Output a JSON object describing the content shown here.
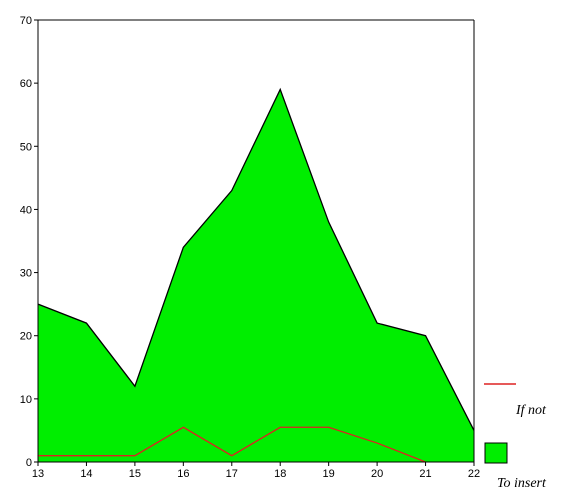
{
  "chart_data": {
    "type": "area",
    "x": [
      13,
      14,
      15,
      16,
      17,
      18,
      19,
      20,
      21,
      22
    ],
    "xlim": [
      13,
      22
    ],
    "ylim": [
      0,
      70
    ],
    "yticks": [
      0,
      10,
      20,
      30,
      40,
      50,
      60,
      70
    ],
    "series": [
      {
        "name": "To insert",
        "kind": "area",
        "color": "#00ee00",
        "values": [
          25,
          22,
          12,
          34,
          43,
          59,
          38,
          22,
          20,
          5
        ]
      },
      {
        "name": "If not",
        "kind": "line",
        "color": "#dd2222",
        "values": [
          1,
          1,
          1,
          5.5,
          1,
          5.5,
          5.5,
          3,
          0,
          null
        ]
      }
    ],
    "legend": "bottom-right",
    "grid": false
  }
}
